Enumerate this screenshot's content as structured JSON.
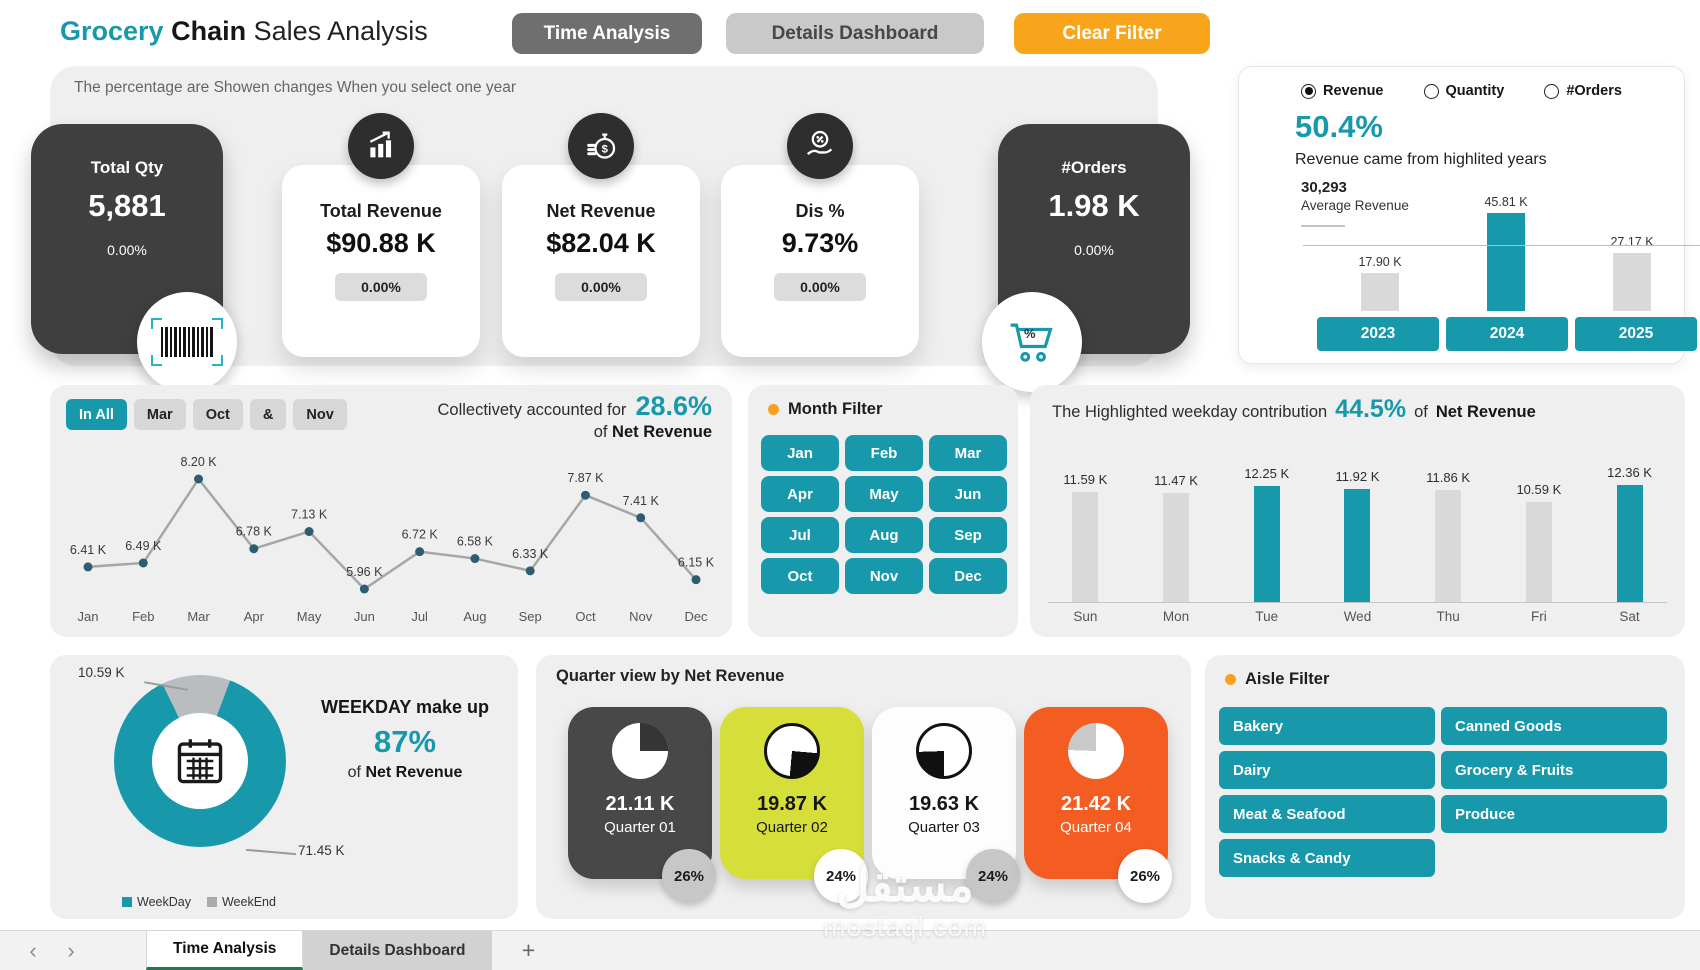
{
  "header": {
    "title": {
      "accent": "Grocery",
      "bold": "Chain",
      "rest": "Sales Analysis"
    },
    "time_analysis_btn": "Time Analysis",
    "details_dashboard_btn": "Details Dashboard",
    "clear_filter_btn": "Clear Filter"
  },
  "colors": {
    "teal": "#1899AB",
    "orange": "#F6A21D",
    "dark_card": "#3F3F3F",
    "lime": "#D6DF3A",
    "quarter_orange": "#F35D22",
    "gray_bar": "#D9D9D9"
  },
  "kpi": {
    "note": "The percentage are Showen changes When you select one year",
    "total_qty": {
      "label": "Total Qty",
      "value": "5,881",
      "change": "0.00%",
      "icon": "barcode-icon"
    },
    "total_revenue": {
      "label": "Total Revenue",
      "value": "$90.88 K",
      "change": "0.00%",
      "icon": "bar-chart-icon"
    },
    "net_revenue": {
      "label": "Net Revenue",
      "value": "$82.04 K",
      "change": "0.00%",
      "icon": "coins-icon"
    },
    "dis_pct": {
      "label": "Dis %",
      "value": "9.73%",
      "change": "0.00%",
      "icon": "hand-percent-icon"
    },
    "orders": {
      "label": "#Orders",
      "value": "1.98 K",
      "change": "0.00%",
      "icon": "cart-icon"
    }
  },
  "year_panel": {
    "radios": [
      {
        "label": "Revenue",
        "selected": true
      },
      {
        "label": "Quantity",
        "selected": false
      },
      {
        "label": "#Orders",
        "selected": false
      }
    ],
    "pct": "50.4%",
    "caption": "Revenue came from highlited years",
    "average_value": "30,293",
    "average_label": "Average Revenue",
    "chart_data": {
      "type": "bar",
      "categories": [
        "2023",
        "2024",
        "2025"
      ],
      "values": [
        17.9,
        45.81,
        27.17
      ],
      "labels": [
        "17.90 K",
        "45.81 K",
        "27.17 K"
      ],
      "highlighted": [
        false,
        true,
        false
      ],
      "average_line": 30.293
    },
    "year_buttons": [
      "2023",
      "2024",
      "2025"
    ]
  },
  "month_trend": {
    "chips": [
      {
        "label": "In All",
        "active": true
      },
      {
        "label": "Mar",
        "active": false
      },
      {
        "label": "Oct",
        "active": false
      },
      {
        "label": "&",
        "active": false
      },
      {
        "label": "Nov",
        "active": false
      }
    ],
    "summary_prefix": "Collectivety accounted for",
    "summary_pct": "28.6%",
    "summary_suffix_prefix": "of",
    "summary_suffix_bold": "Net Revenue",
    "chart_data": {
      "type": "line",
      "categories": [
        "Jan",
        "Feb",
        "Mar",
        "Apr",
        "May",
        "Jun",
        "Jul",
        "Aug",
        "Sep",
        "Oct",
        "Nov",
        "Dec"
      ],
      "values": [
        6.41,
        6.49,
        8.2,
        6.78,
        7.13,
        5.96,
        6.72,
        6.58,
        6.33,
        7.87,
        7.41,
        6.15
      ],
      "labels": [
        "6.41 K",
        "6.49 K",
        "8.20 K",
        "6.78 K",
        "7.13 K",
        "5.96 K",
        "6.72 K",
        "6.58 K",
        "6.33 K",
        "7.87 K",
        "7.41 K",
        "6.15 K"
      ]
    }
  },
  "month_filter": {
    "title": "Month Filter",
    "months": [
      "Jan",
      "Feb",
      "Mar",
      "Apr",
      "May",
      "Jun",
      "Jul",
      "Aug",
      "Sep",
      "Oct",
      "Nov",
      "Dec"
    ]
  },
  "weekday_panel": {
    "title_prefix": "The Highlighted weekday contribution",
    "pct": "44.5%",
    "title_mid": "of",
    "title_bold": "Net Revenue",
    "chart_data": {
      "type": "bar",
      "categories": [
        "Sun",
        "Mon",
        "Tue",
        "Wed",
        "Thu",
        "Fri",
        "Sat"
      ],
      "values": [
        11.59,
        11.47,
        12.25,
        11.92,
        11.86,
        10.59,
        12.36
      ],
      "labels": [
        "11.59 K",
        "11.47 K",
        "12.25 K",
        "11.92 K",
        "11.86 K",
        "10.59 K",
        "12.36 K"
      ],
      "highlighted": [
        false,
        false,
        true,
        true,
        false,
        false,
        true
      ]
    }
  },
  "donut_panel": {
    "weekend_label": "10.59 K",
    "weekday_label": "71.45 K",
    "headline": "WEEKDAY make up",
    "pct": "87%",
    "sub_prefix": "of",
    "sub_bold": "Net Revenue",
    "legend": [
      {
        "label": "WeekDay",
        "color": "#1899AB"
      },
      {
        "label": "WeekEnd",
        "color": "#ABABAB"
      }
    ],
    "chart_data": {
      "type": "pie",
      "categories": [
        "WeekDay",
        "WeekEnd"
      ],
      "values": [
        71.45,
        10.59
      ]
    }
  },
  "quarter_panel": {
    "title": "Quarter view by Net Revenue",
    "quarters": [
      {
        "value": "21.11 K",
        "label": "Quarter 01",
        "pct": "26%"
      },
      {
        "value": "19.87 K",
        "label": "Quarter 02",
        "pct": "24%"
      },
      {
        "value": "19.63 K",
        "label": "Quarter 03",
        "pct": "24%"
      },
      {
        "value": "21.42 K",
        "label": "Quarter 04",
        "pct": "26%"
      }
    ]
  },
  "aisle_filter": {
    "title": "Aisle Filter",
    "items": [
      "Bakery",
      "Canned Goods",
      "Dairy",
      "Grocery & Fruits",
      "Meat & Seafood",
      "Produce",
      "Snacks & Candy"
    ]
  },
  "tab_bar": {
    "tabs": [
      {
        "label": "Time Analysis",
        "active": true
      },
      {
        "label": "Details Dashboard",
        "active": false
      }
    ],
    "add_label": "+"
  },
  "watermark": {
    "arabic": "مستقل",
    "latin": "mostaql.com"
  }
}
